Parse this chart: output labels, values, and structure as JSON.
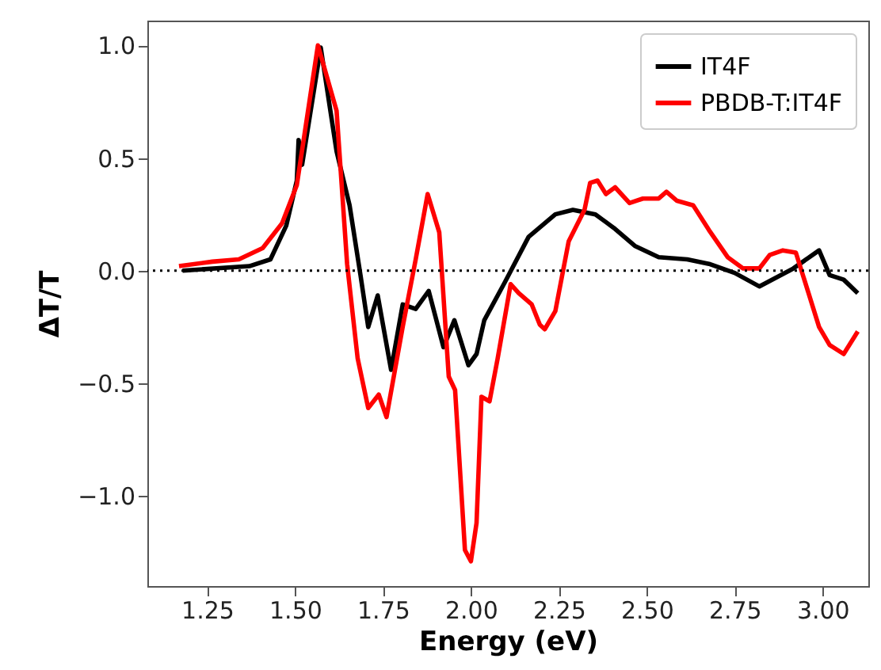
{
  "chart_data": {
    "type": "line",
    "xlabel": "Energy (eV)",
    "ylabel": "ΔT/T",
    "xlim": [
      1.08,
      3.13
    ],
    "xticks": [
      {
        "value": 1.25,
        "label": "1.25"
      },
      {
        "value": 1.5,
        "label": "1.50"
      },
      {
        "value": 1.75,
        "label": "1.75"
      },
      {
        "value": 2.0,
        "label": "2.00"
      },
      {
        "value": 2.25,
        "label": "2.25"
      },
      {
        "value": 2.5,
        "label": "2.50"
      },
      {
        "value": 2.75,
        "label": "2.75"
      },
      {
        "value": 3.0,
        "label": "3.00"
      }
    ],
    "ylim": [
      -1.4,
      1.11
    ],
    "yticks": [
      {
        "value": -1.0,
        "label": "−1.0"
      },
      {
        "value": -0.5,
        "label": "−0.5"
      },
      {
        "value": 0.0,
        "label": "0.0"
      },
      {
        "value": 0.5,
        "label": "0.5"
      },
      {
        "value": 1.0,
        "label": "1.0"
      }
    ],
    "grid": false,
    "legend": "top right",
    "line_style": "solid",
    "marker": "none",
    "ref_lines": [
      {
        "axis": "y",
        "value": 0,
        "label": null,
        "color": "#000000",
        "line_style": "dotted"
      }
    ],
    "series": [
      {
        "name": "IT4F",
        "color": "#000000",
        "x": [
          1.18,
          1.37,
          1.43,
          1.475,
          1.505,
          1.51,
          1.52,
          1.573,
          1.618,
          1.655,
          1.686,
          1.708,
          1.735,
          1.773,
          1.806,
          1.843,
          1.88,
          1.922,
          1.953,
          1.993,
          2.016,
          2.038,
          2.097,
          2.164,
          2.24,
          2.29,
          2.354,
          2.406,
          2.466,
          2.534,
          2.615,
          2.677,
          2.75,
          2.82,
          2.917,
          2.99,
          3.02,
          3.06,
          3.1
        ],
        "values": [
          0.0,
          0.02,
          0.05,
          0.2,
          0.4,
          0.58,
          0.47,
          0.99,
          0.53,
          0.29,
          -0.02,
          -0.25,
          -0.11,
          -0.44,
          -0.15,
          -0.17,
          -0.09,
          -0.34,
          -0.22,
          -0.42,
          -0.37,
          -0.22,
          -0.05,
          0.15,
          0.25,
          0.27,
          0.25,
          0.19,
          0.11,
          0.06,
          0.05,
          0.03,
          -0.01,
          -0.07,
          0.01,
          0.09,
          -0.02,
          -0.04,
          -0.1
        ]
      },
      {
        "name": "PBDB-T:IT4F",
        "color": "#ff0000",
        "x": [
          1.17,
          1.265,
          1.34,
          1.408,
          1.463,
          1.505,
          1.565,
          1.618,
          1.648,
          1.678,
          1.708,
          1.738,
          1.76,
          1.806,
          1.843,
          1.877,
          1.91,
          1.937,
          1.955,
          1.983,
          2.0,
          2.016,
          2.03,
          2.053,
          2.076,
          2.113,
          2.136,
          2.173,
          2.196,
          2.21,
          2.24,
          2.278,
          2.323,
          2.339,
          2.36,
          2.384,
          2.41,
          2.451,
          2.489,
          2.534,
          2.556,
          2.586,
          2.632,
          2.677,
          2.73,
          2.774,
          2.82,
          2.85,
          2.887,
          2.924,
          2.954,
          2.99,
          3.02,
          3.06,
          3.1
        ],
        "values": [
          0.02,
          0.04,
          0.05,
          0.1,
          0.21,
          0.38,
          1.0,
          0.71,
          0.03,
          -0.39,
          -0.61,
          -0.55,
          -0.65,
          -0.25,
          0.05,
          0.34,
          0.17,
          -0.47,
          -0.53,
          -1.24,
          -1.29,
          -1.12,
          -0.56,
          -0.58,
          -0.39,
          -0.06,
          -0.1,
          -0.15,
          -0.24,
          -0.26,
          -0.18,
          0.13,
          0.27,
          0.39,
          0.4,
          0.34,
          0.37,
          0.3,
          0.32,
          0.32,
          0.35,
          0.31,
          0.29,
          0.18,
          0.06,
          0.01,
          0.01,
          0.07,
          0.09,
          0.08,
          -0.07,
          -0.25,
          -0.33,
          -0.37,
          -0.27
        ]
      }
    ]
  }
}
